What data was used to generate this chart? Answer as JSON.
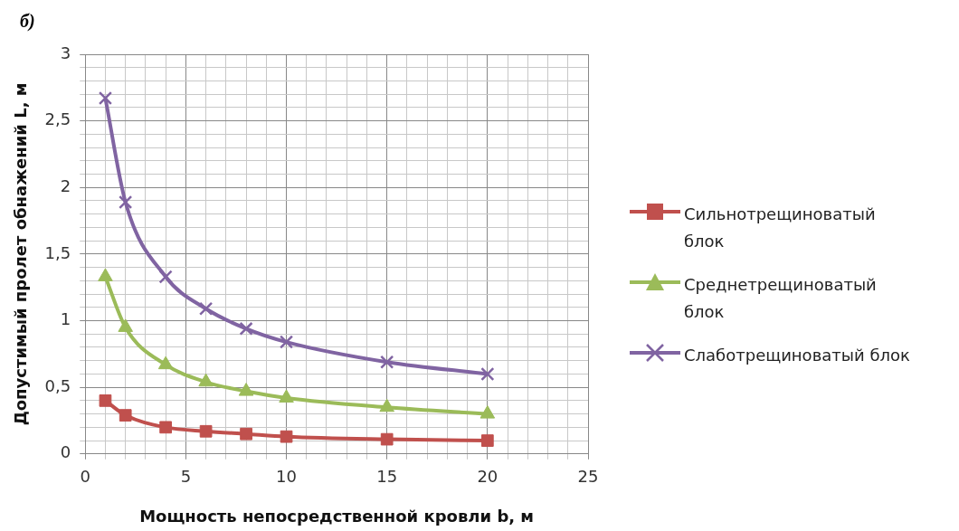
{
  "chart_data": {
    "type": "line",
    "title": "б)",
    "xlabel": "Мощность непосредственной кровли b, м",
    "ylabel": "Допустимый пролет обнажений L, м",
    "x": [
      1,
      2,
      4,
      6,
      8,
      10,
      15,
      20
    ],
    "series": [
      {
        "name": "Сильнотрещиноватый блок",
        "color": "#c0504d",
        "marker": "square",
        "values": [
          0.4,
          0.29,
          0.2,
          0.17,
          0.15,
          0.13,
          0.11,
          0.1
        ]
      },
      {
        "name": "Среднетрещиноватый блок",
        "color": "#9bbb59",
        "marker": "triangle",
        "values": [
          1.33,
          0.95,
          0.67,
          0.54,
          0.47,
          0.42,
          0.35,
          0.3
        ]
      },
      {
        "name": "Слаботрещиноватый блок",
        "color": "#8064a2",
        "marker": "cross",
        "values": [
          2.67,
          1.89,
          1.33,
          1.09,
          0.94,
          0.84,
          0.69,
          0.6
        ]
      }
    ],
    "xlim": [
      0,
      25
    ],
    "ylim": [
      0,
      3
    ],
    "xticks": [
      0,
      {
        "value": 1,
        "label": null
      },
      {
        "value": 2,
        "label": null
      },
      {
        "value": 3,
        "label": null
      },
      {
        "value": 4,
        "label": null
      },
      5,
      {
        "value": 6,
        "label": null
      },
      {
        "value": 7,
        "label": null
      },
      {
        "value": 8,
        "label": null
      },
      {
        "value": 9,
        "label": null
      },
      10,
      {
        "value": 11,
        "label": null
      },
      {
        "value": 12,
        "label": null
      },
      {
        "value": 13,
        "label": null
      },
      {
        "value": 14,
        "label": null
      },
      15,
      {
        "value": 16,
        "label": null
      },
      {
        "value": 17,
        "label": null
      },
      {
        "value": 18,
        "label": null
      },
      {
        "value": 19,
        "label": null
      },
      20,
      {
        "value": 21,
        "label": null
      },
      {
        "value": 22,
        "label": null
      },
      {
        "value": 23,
        "label": null
      },
      {
        "value": 24,
        "label": null
      },
      25
    ],
    "yticks": [
      0,
      {
        "value": 0.1,
        "label": null
      },
      {
        "value": 0.2,
        "label": null
      },
      {
        "value": 0.3,
        "label": null
      },
      {
        "value": 0.4,
        "label": null
      },
      {
        "value": 0.5,
        "label": "0,5"
      },
      {
        "value": 0.6,
        "label": null
      },
      {
        "value": 0.7,
        "label": null
      },
      {
        "value": 0.8,
        "label": null
      },
      {
        "value": 0.9,
        "label": null
      },
      1,
      {
        "value": 1.1,
        "label": null
      },
      {
        "value": 1.2,
        "label": null
      },
      {
        "value": 1.3,
        "label": null
      },
      {
        "value": 1.4,
        "label": null
      },
      {
        "value": 1.5,
        "label": "1,5"
      },
      {
        "value": 1.6,
        "label": null
      },
      {
        "value": 1.7,
        "label": null
      },
      {
        "value": 1.8,
        "label": null
      },
      {
        "value": 1.9,
        "label": null
      },
      2,
      {
        "value": 2.1,
        "label": null
      },
      {
        "value": 2.2,
        "label": null
      },
      {
        "value": 2.3,
        "label": null
      },
      {
        "value": 2.4,
        "label": null
      },
      {
        "value": 2.5,
        "label": "2,5"
      },
      {
        "value": 2.6,
        "label": null
      },
      {
        "value": 2.7,
        "label": null
      },
      {
        "value": 2.8,
        "label": null
      },
      {
        "value": 2.9,
        "label": null
      },
      3
    ],
    "grid": true,
    "legend": "right",
    "line_style": "solid"
  }
}
